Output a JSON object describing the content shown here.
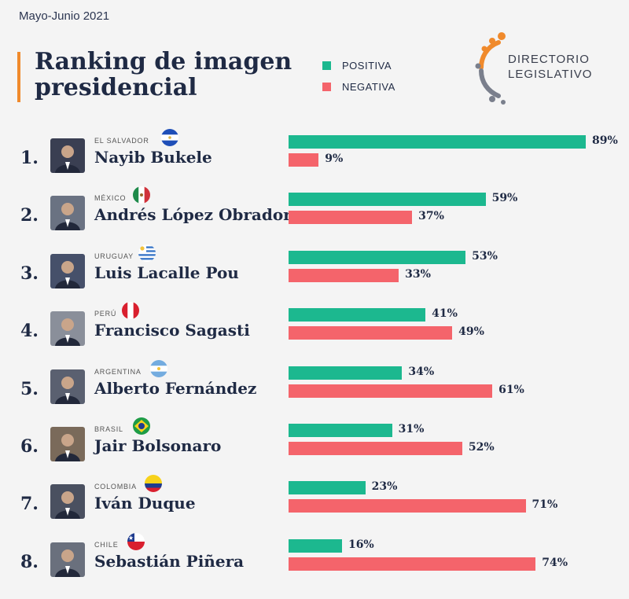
{
  "header": {
    "date": "Mayo-Junio 2021",
    "title_line1": "Ranking de imagen",
    "title_line2": "presidencial"
  },
  "legend": {
    "positive": "POSITIVA",
    "negative": "NEGATIVA"
  },
  "logo": {
    "line1": "DIRECTORIO",
    "line2": "LEGISLATIVO"
  },
  "colors": {
    "positive": "#1cb88f",
    "negative": "#f4646b",
    "accent": "#f08a2c"
  },
  "chart_data": {
    "type": "bar",
    "orientation": "horizontal",
    "xlim": [
      0,
      100
    ],
    "unit": "%",
    "rows": [
      {
        "rank": "1.",
        "country": "EL SALVADOR",
        "name": "Nayib Bukele",
        "flag": "el-salvador",
        "positiva": 89,
        "negativa": 9,
        "positiva_label": "89%",
        "negativa_label": "9%"
      },
      {
        "rank": "2.",
        "country": "MÉXICO",
        "name": "Andrés López Obrador",
        "flag": "mexico",
        "positiva": 59,
        "negativa": 37,
        "positiva_label": "59%",
        "negativa_label": "37%"
      },
      {
        "rank": "3.",
        "country": "URUGUAY",
        "name": "Luis Lacalle Pou",
        "flag": "uruguay",
        "positiva": 53,
        "negativa": 33,
        "positiva_label": "53%",
        "negativa_label": "33%"
      },
      {
        "rank": "4.",
        "country": "PERÚ",
        "name": "Francisco Sagasti",
        "flag": "peru",
        "positiva": 41,
        "negativa": 49,
        "positiva_label": "41%",
        "negativa_label": "49%"
      },
      {
        "rank": "5.",
        "country": "ARGENTINA",
        "name": "Alberto Fernández",
        "flag": "argentina",
        "positiva": 34,
        "negativa": 61,
        "positiva_label": "34%",
        "negativa_label": "61%"
      },
      {
        "rank": "6.",
        "country": "BRASIL",
        "name": "Jair Bolsonaro",
        "flag": "brasil",
        "positiva": 31,
        "negativa": 52,
        "positiva_label": "31%",
        "negativa_label": "52%"
      },
      {
        "rank": "7.",
        "country": "COLOMBIA",
        "name": "Iván Duque",
        "flag": "colombia",
        "positiva": 23,
        "negativa": 71,
        "positiva_label": "23%",
        "negativa_label": "71%"
      },
      {
        "rank": "8.",
        "country": "CHILE",
        "name": "Sebastián Piñera",
        "flag": "chile",
        "positiva": 16,
        "negativa": 74,
        "positiva_label": "16%",
        "negativa_label": "74%"
      }
    ]
  }
}
